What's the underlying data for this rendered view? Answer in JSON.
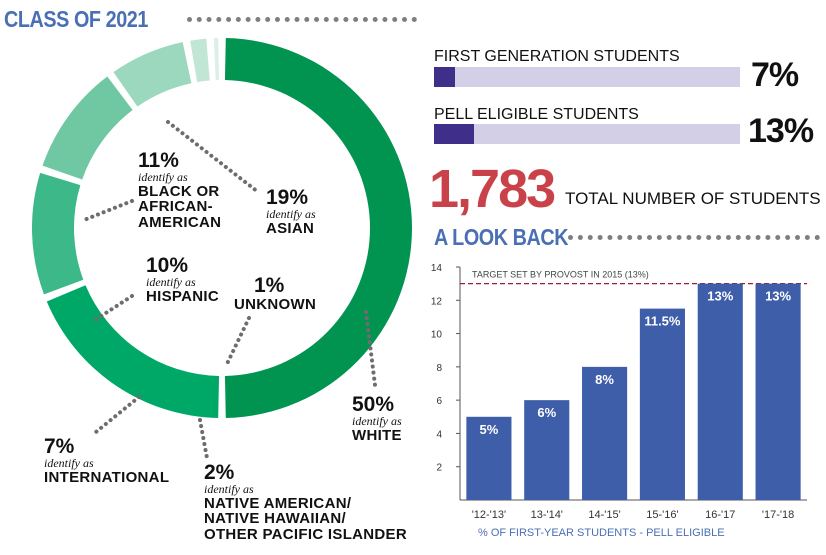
{
  "headings": {
    "class_of": "CLASS OF 2021",
    "look_back": "A LOOK BACK"
  },
  "stats": {
    "first_gen": {
      "label": "FIRST GENERATION STUDENTS",
      "value": "7%",
      "fraction": 0.07
    },
    "pell": {
      "label": "PELL ELIGIBLE STUDENTS",
      "value": "13%",
      "fraction": 0.13
    },
    "total_number": "1,783",
    "total_label": "TOTAL NUMBER OF STUDENTS"
  },
  "colors": {
    "heading": "#4a6fb5",
    "bar_fill": "#3f2f8a",
    "bar_track": "#d2cfe6",
    "total_red": "#c9424a",
    "chart_bar": "#3f5ea9",
    "target_line": "#9b1d3a"
  },
  "demographics": [
    {
      "pct": "50%",
      "identify": "identify as",
      "group": [
        "WHITE"
      ],
      "value": 50,
      "color": "#009450"
    },
    {
      "pct": "19%",
      "identify": "identify as",
      "group": [
        "ASIAN"
      ],
      "value": 19,
      "color": "#00a868"
    },
    {
      "pct": "11%",
      "identify": "identify as",
      "group": [
        "BLACK OR",
        "AFRICAN-",
        "AMERICAN"
      ],
      "value": 11,
      "color": "#3db888"
    },
    {
      "pct": "10%",
      "identify": "identify as",
      "group": [
        "HISPANIC"
      ],
      "value": 10,
      "color": "#6fc8a2"
    },
    {
      "pct": "7%",
      "identify": "identify as",
      "group": [
        "INTERNATIONAL"
      ],
      "value": 7,
      "color": "#9bd8bd"
    },
    {
      "pct": "2%",
      "identify": "identify as",
      "group": [
        "NATIVE AMERICAN/",
        "NATIVE HAWAIIAN/",
        "OTHER PACIFIC ISLANDER"
      ],
      "value": 2,
      "color": "#c2e6d6"
    },
    {
      "pct": "1%",
      "identify": "",
      "group": [
        "UNKNOWN"
      ],
      "value": 1,
      "color": "#dcefe6"
    }
  ],
  "chart_data": [
    {
      "type": "pie",
      "title": "CLASS OF 2021",
      "labels": [
        "WHITE",
        "ASIAN",
        "BLACK OR AFRICAN-AMERICAN",
        "HISPANIC",
        "INTERNATIONAL",
        "NATIVE AMERICAN/ NATIVE HAWAIIAN/ OTHER PACIFIC ISLANDER",
        "UNKNOWN"
      ],
      "values": [
        50,
        19,
        11,
        10,
        7,
        2,
        1
      ]
    },
    {
      "type": "bar",
      "title": "A LOOK BACK",
      "categories": [
        "'12-'13'",
        "13-'14'",
        "14-'15'",
        "15-'16'",
        "16-'17",
        "'17-'18"
      ],
      "values": [
        5,
        6,
        8,
        11.5,
        13,
        13
      ],
      "value_labels": [
        "5%",
        "6%",
        "8%",
        "11.5%",
        "13%",
        "13%"
      ],
      "xlabel": "% OF FIRST-YEAR STUDENTS - PELL ELIGIBLE",
      "ylabel": "",
      "ylim": [
        0,
        14
      ],
      "yticks": [
        2,
        4,
        6,
        8,
        10,
        12,
        14
      ],
      "target": {
        "value": 13,
        "label": "TARGET SET BY PROVOST IN 2015 (13%)"
      }
    }
  ]
}
